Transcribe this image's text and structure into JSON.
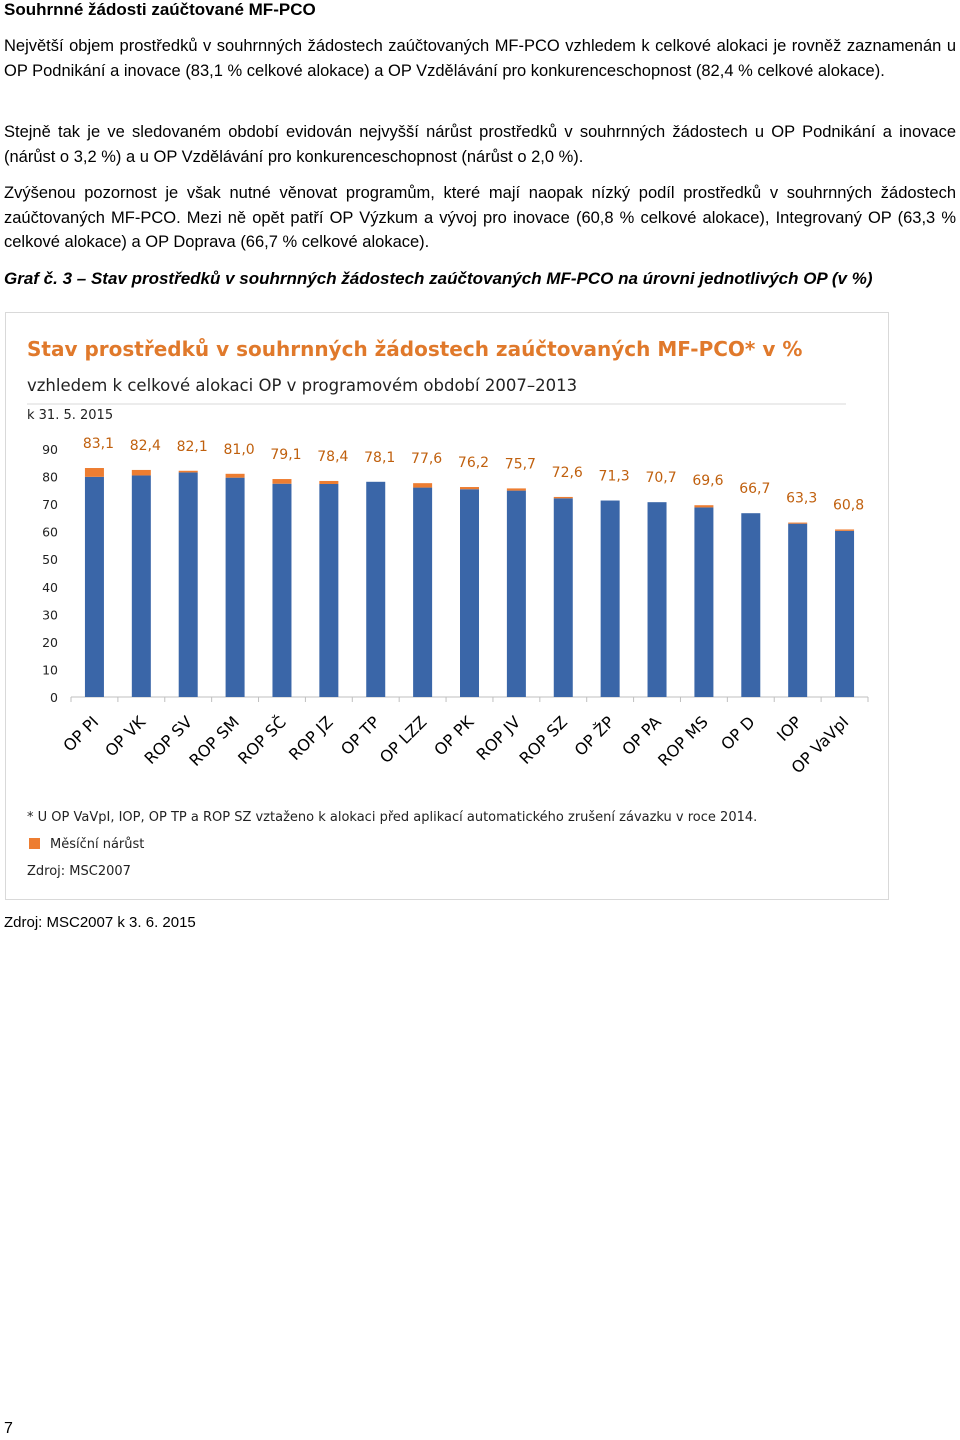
{
  "document": {
    "section_heading": "Souhrnné žádosti zaúčtované MF-PCO",
    "paragraphs": [
      "Největší objem prostředků v souhrnných žádostech zaúčtovaných MF-PCO vzhledem k celkové alokaci je rovněž zaznamenán u OP Podnikání a inovace (83,1 % celkové alokace) a OP Vzdělávání pro konkurenceschopnost (82,4 % celkové alokace).",
      "Stejně tak je ve sledovaném období evidován nejvyšší nárůst prostředků v souhrnných žádostech u OP Podnikání a inovace (nárůst o 3,2 %) a u OP Vzdělávání pro konkurenceschopnost (nárůst o 2,0 %).",
      "Zvýšenou pozornost je však nutné věnovat programům, které mají naopak nízký podíl prostředků v souhrnných žádostech zaúčtovaných MF-PCO. Mezi ně opět patří OP Výzkum a vývoj pro inovace (60,8 % celkové alokace), Integrovaný OP (63,3 % celkové alokace) a OP Doprava (66,7 % celkové alokace)."
    ],
    "graph_caption_prefix": "Graf č. ",
    "graph_caption_number": "3",
    "graph_caption_text": " – Stav prostředků v souhrnných žádostech zaúčtovaných MF-PCO na úrovni jednotlivých OP (v %)",
    "source_bottom": "Zdroj: MSC2007 k 3. 6. 2015",
    "page_number": "7"
  },
  "chart_data": {
    "type": "bar",
    "stacked": true,
    "title": "Stav prostředků v souhrnných žádostech zaúčtovaných MF-PCO* v %",
    "subtitle": "vzhledem k celkové alokaci OP v programovém období 2007–2013",
    "date_note": "k 31. 5. 2015",
    "categories": [
      "OP PI",
      "OP VK",
      "ROP SV",
      "ROP SM",
      "ROP SČ",
      "ROP JZ",
      "OP TP",
      "OP LZZ",
      "OP PK",
      "ROP JV",
      "ROP SZ",
      "OP ŽP",
      "OP PA",
      "ROP MS",
      "OP D",
      "IOP",
      "OP VaVpI"
    ],
    "totals": [
      83.1,
      82.4,
      82.1,
      81.0,
      79.1,
      78.4,
      78.1,
      77.6,
      76.2,
      75.7,
      72.6,
      71.3,
      70.7,
      69.6,
      66.7,
      63.3,
      60.8
    ],
    "total_labels": [
      "83,1",
      "82,4",
      "82,1",
      "81,0",
      "79,1",
      "78,4",
      "78,1",
      "77,6",
      "76,2",
      "75,7",
      "72,6",
      "71,3",
      "70,7",
      "69,6",
      "66,7",
      "63,3",
      "60,8"
    ],
    "series": [
      {
        "name": "",
        "color": "#3a66a8",
        "values": [
          79.9,
          80.4,
          81.5,
          79.6,
          77.4,
          77.3,
          78.1,
          76.0,
          75.4,
          74.9,
          72.1,
          71.3,
          70.7,
          68.8,
          66.7,
          62.9,
          60.3
        ]
      },
      {
        "name": "Měsíční nárůst",
        "color": "#ed7d31",
        "values": [
          3.2,
          2.0,
          0.6,
          1.4,
          1.7,
          1.1,
          0.0,
          1.6,
          0.8,
          0.8,
          0.5,
          0.0,
          0.0,
          0.8,
          0.0,
          0.4,
          0.5
        ]
      }
    ],
    "yticks": [
      0,
      10,
      20,
      30,
      40,
      50,
      60,
      70,
      80,
      90
    ],
    "ylim": [
      0,
      90
    ],
    "label_color": "#c0600e",
    "title_color": "#e0792b",
    "footnote": "* U OP VaVpI, IOP, OP TP a ROP SZ vztaženo k alokaci před aplikací automatického zrušení závazku v roce 2014.",
    "legend_label": "Měsíční nárůst",
    "source": "Zdroj: MSC2007"
  }
}
